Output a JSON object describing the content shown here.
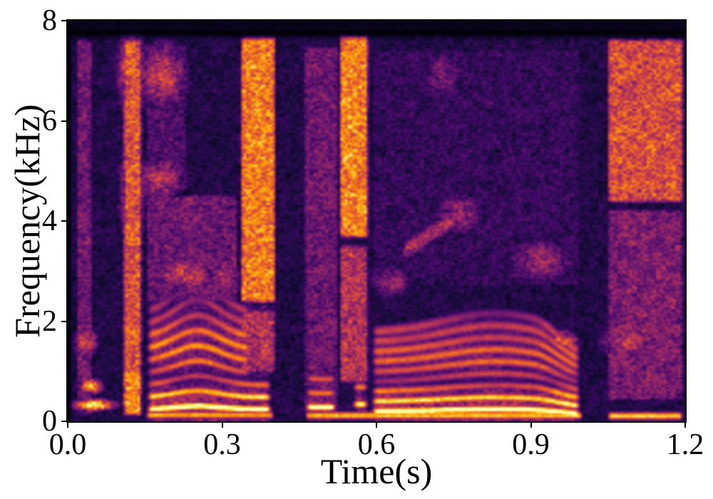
{
  "chart_data": {
    "type": "heatmap",
    "subtype": "speech-spectrogram",
    "title": "",
    "xlabel": "Time(s)",
    "ylabel": "Frequency(kHz)",
    "xlim": [
      0,
      1.2
    ],
    "ylim": [
      0,
      8
    ],
    "xticks": {
      "values": [
        0.0,
        0.3,
        0.6,
        0.9,
        1.2
      ],
      "labels": [
        "0.0",
        "0.3",
        "0.6",
        "0.9",
        "1.2"
      ]
    },
    "yticks": {
      "values": [
        0,
        2,
        4,
        6,
        8
      ],
      "labels": [
        "0",
        "2",
        "4",
        "6",
        "8"
      ]
    },
    "grid": false,
    "colorbar": false,
    "background_color": "#ffffff",
    "axis_color": "#000000",
    "colormap": {
      "name": "inferno",
      "stops": [
        "#000004",
        "#160b39",
        "#420a68",
        "#6a176e",
        "#932667",
        "#bc3754",
        "#dd513a",
        "#f37819",
        "#fca50a",
        "#f6d746",
        "#fcffa4"
      ]
    },
    "noise_floor": 0.125,
    "top_cutoff_khz": 7.78,
    "events": {
      "columns": [
        {
          "name": "onset-noise-column",
          "t": [
            0.012,
            0.052
          ],
          "f": [
            0.05,
            7.7
          ],
          "level": 0.3
        },
        {
          "name": "plosive-burst",
          "t": [
            0.104,
            0.148
          ],
          "f": [
            0.05,
            7.7
          ],
          "level": 0.6
        },
        {
          "name": "plosive-burst-low",
          "t": [
            0.104,
            0.148
          ],
          "f": [
            0.05,
            1.1
          ],
          "level": 0.72
        },
        {
          "name": "voiced-a-mid-noise",
          "t": [
            0.148,
            0.335
          ],
          "f": [
            2.3,
            4.6
          ],
          "level": 0.3
        },
        {
          "name": "voiced-a-high-noise",
          "t": [
            0.148,
            0.235
          ],
          "f": [
            4.6,
            7.6
          ],
          "level": 0.24
        },
        {
          "name": "fricative-1-high",
          "t": [
            0.332,
            0.408
          ],
          "f": [
            2.3,
            7.75
          ],
          "level": 0.7
        },
        {
          "name": "fricative-1-mid",
          "t": [
            0.332,
            0.408
          ],
          "f": [
            0.9,
            2.3
          ],
          "level": 0.45
        },
        {
          "name": "voiced-bar-column",
          "t": [
            0.455,
            0.53
          ],
          "f": [
            0.05,
            7.55
          ],
          "level": 0.3
        },
        {
          "name": "fricative-2-high",
          "t": [
            0.524,
            0.588
          ],
          "f": [
            3.6,
            7.78
          ],
          "level": 0.72
        },
        {
          "name": "fricative-2-mid",
          "t": [
            0.524,
            0.588
          ],
          "f": [
            0.7,
            3.6
          ],
          "level": 0.48
        },
        {
          "name": "voiced-b-high-speckle",
          "t": [
            0.588,
            1.0
          ],
          "f": [
            2.6,
            7.5
          ],
          "level": 0.17
        },
        {
          "name": "fricative-3-high",
          "t": [
            1.045,
            1.2
          ],
          "f": [
            4.3,
            7.7
          ],
          "level": 0.58
        },
        {
          "name": "fricative-3-mid",
          "t": [
            1.045,
            1.2
          ],
          "f": [
            0.35,
            4.3
          ],
          "level": 0.34
        }
      ],
      "blobs": [
        {
          "name": "onset-voice-blob-high",
          "t": 0.045,
          "f": 0.7,
          "st": 0.016,
          "sf": 0.1,
          "level": 0.85
        },
        {
          "name": "onset-voice-blob-low",
          "t": 0.05,
          "f": 0.33,
          "st": 0.03,
          "sf": 0.08,
          "level": 0.95
        },
        {
          "name": "onset-mid-patch",
          "t": 0.035,
          "f": 1.6,
          "st": 0.018,
          "sf": 0.22,
          "level": 0.5
        },
        {
          "name": "burst-hf-core",
          "t": 0.125,
          "f": 7.0,
          "st": 0.02,
          "sf": 0.6,
          "level": 0.62
        },
        {
          "name": "burst-mid-core",
          "t": 0.125,
          "f": 4.6,
          "st": 0.018,
          "sf": 0.7,
          "level": 0.55
        },
        {
          "name": "voiced-a-hf-patch-1",
          "t": 0.185,
          "f": 6.9,
          "st": 0.035,
          "sf": 0.5,
          "level": 0.52
        },
        {
          "name": "voiced-a-hf-patch-2",
          "t": 0.18,
          "f": 4.85,
          "st": 0.035,
          "sf": 0.35,
          "level": 0.48
        },
        {
          "name": "voiced-a-mid-patch-1",
          "t": 0.23,
          "f": 2.95,
          "st": 0.045,
          "sf": 0.28,
          "level": 0.52
        },
        {
          "name": "voiced-a-mid-patch-2",
          "t": 0.305,
          "f": 2.85,
          "st": 0.025,
          "sf": 0.22,
          "level": 0.45
        },
        {
          "name": "voiced-b-mid-patch-1",
          "t": 0.63,
          "f": 2.8,
          "st": 0.03,
          "sf": 0.25,
          "level": 0.38
        },
        {
          "name": "voiced-b-mid-patch-2",
          "t": 0.76,
          "f": 4.15,
          "st": 0.035,
          "sf": 0.3,
          "level": 0.42
        },
        {
          "name": "voiced-b-hf-patch",
          "t": 0.73,
          "f": 6.9,
          "st": 0.025,
          "sf": 0.4,
          "level": 0.35
        },
        {
          "name": "voiced-b-mid-patch-3",
          "t": 0.92,
          "f": 3.2,
          "st": 0.045,
          "sf": 0.35,
          "level": 0.4
        },
        {
          "name": "voiced-b-offset-blob",
          "t": 0.965,
          "f": 1.6,
          "st": 0.02,
          "sf": 0.15,
          "level": 0.65
        },
        {
          "name": "fricative-3-mid-patch",
          "t": 1.09,
          "f": 1.6,
          "st": 0.04,
          "sf": 0.25,
          "level": 0.5
        },
        {
          "name": "fricative-3-core",
          "t": 1.13,
          "f": 6.3,
          "st": 0.05,
          "sf": 1.0,
          "level": 0.45
        }
      ],
      "streaks": [
        {
          "name": "rising-streak",
          "t": [
            0.645,
            0.76
          ],
          "f": [
            3.35,
            4.1
          ],
          "sf": 0.15,
          "level": 0.45
        }
      ],
      "voiced_segments": [
        {
          "name": "voiced-segment-1",
          "t": [
            0.148,
            0.402
          ],
          "f0_contour": {
            "base": 0.24,
            "bump": 0.062,
            "center": 0.252,
            "width": 0.062,
            "droop": 0.0
          },
          "harmonics": 9,
          "hi_cut_t": 0.345,
          "ftop": 2.5,
          "level": 1.0,
          "formants": [
            {
              "f": 0.35,
              "bw": 0.42,
              "g": 1.0
            },
            {
              "f": 1.5,
              "bw": 0.62,
              "g": 0.82
            },
            {
              "f": 2.15,
              "bw": 0.35,
              "g": 0.55
            }
          ]
        },
        {
          "name": "voiced-segment-2",
          "t": [
            0.585,
            1.002
          ],
          "f0_contour": {
            "base": 0.197,
            "bump": 0.042,
            "center": 0.83,
            "width": 0.135,
            "droop": 0.05
          },
          "harmonics": 9,
          "hi_cut_t": null,
          "ftop": 2.2,
          "level": 1.0,
          "formants": [
            {
              "f": 0.3,
              "bw": 0.38,
              "g": 1.0
            },
            {
              "f": 1.3,
              "bw": 0.5,
              "g": 0.72
            },
            {
              "f": 1.8,
              "bw": 0.35,
              "g": 0.6
            }
          ]
        },
        {
          "name": "voiced-segment-3",
          "t": [
            0.456,
            0.528
          ],
          "f0_contour": {
            "base": 0.3,
            "bump": -0.02,
            "center": 0.5,
            "width": 0.06,
            "droop": 0.0
          },
          "harmonics": 3,
          "hi_cut_t": null,
          "ftop": 1.2,
          "level": 0.95,
          "formants": [
            {
              "f": 0.3,
              "bw": 0.3,
              "g": 1.0
            },
            {
              "f": 0.68,
              "bw": 0.25,
              "g": 0.8
            }
          ]
        },
        {
          "name": "voiced-segment-4",
          "t": [
            0.548,
            0.59
          ],
          "f0_contour": {
            "base": 0.34,
            "bump": 0.0,
            "center": 0.57,
            "width": 0.05,
            "droop": 0.0
          },
          "harmonics": 2,
          "hi_cut_t": null,
          "ftop": 1.0,
          "level": 0.9,
          "formants": [
            {
              "f": 0.35,
              "bw": 0.3,
              "g": 1.0
            },
            {
              "f": 0.7,
              "bw": 0.25,
              "g": 0.8
            }
          ]
        }
      ],
      "voicing_bars": [
        {
          "name": "voicing-bar-1",
          "t": [
            0.148,
            0.405
          ],
          "f": 0.125,
          "level": 0.8
        },
        {
          "name": "voicing-bar-2",
          "t": [
            0.458,
            1.005
          ],
          "f": 0.115,
          "level": 0.85
        },
        {
          "name": "voicing-bar-3",
          "t": [
            1.045,
            1.2
          ],
          "f": 0.105,
          "level": 0.88
        }
      ]
    }
  }
}
